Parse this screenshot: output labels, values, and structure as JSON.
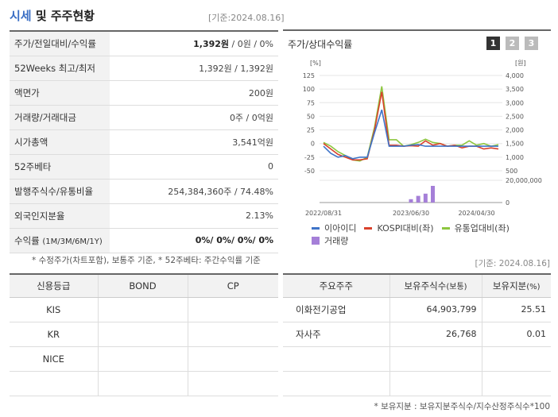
{
  "header": {
    "title_main": "시세",
    "title_rest": " 및 주주현황",
    "basis": "[기준:2024.08.16]"
  },
  "quote": {
    "rows": [
      {
        "label": "주가/전일대비/수익률",
        "value_bold": "1,392원",
        "value": " / 0원 / 0%"
      },
      {
        "label": "52Weeks 최고/최저",
        "value": "1,392원 / 1,392원"
      },
      {
        "label": "액면가",
        "value": "200원"
      },
      {
        "label": "거래량/거래대금",
        "value": "0주 / 0억원"
      },
      {
        "label": "시가총액",
        "value": "3,541억원"
      },
      {
        "label": "52주베타",
        "value": "0"
      },
      {
        "label": "발행주식수/유통비율",
        "value": "254,384,360주 / 74.48%"
      },
      {
        "label": "외국인지분율",
        "value": "2.13%"
      },
      {
        "label": "수익률",
        "label_small": "(1M/3M/6M/1Y)",
        "value_bold": "0%/ 0%/ 0%/ 0%"
      }
    ],
    "note": "* 수정주가(차트포함), 보통주 기준, * 52주베타: 주간수익률 기준"
  },
  "chart": {
    "title": "주가/상대수익률",
    "pages": [
      "1",
      "2",
      "3"
    ],
    "legend": [
      {
        "name": "이아이디",
        "color": "#3f74c8"
      },
      {
        "name": "KOSPI대비(좌)",
        "color": "#d9412c"
      },
      {
        "name": "유통업대비(좌)",
        "color": "#8dc63f"
      },
      {
        "name": "거래량",
        "color": "#a57fd8"
      }
    ]
  },
  "chart_data": {
    "type": "line",
    "left_axis": {
      "unit": "[%]",
      "ticks": [
        "125",
        "100",
        "75",
        "50",
        "25",
        "0",
        "-25",
        "-50"
      ],
      "ylim": [
        -50,
        125
      ]
    },
    "right_axis": {
      "unit": "[원]",
      "ticks": [
        "4,000",
        "3,500",
        "3,000",
        "2,500",
        "2,000",
        "1,500",
        "1,000",
        "500"
      ],
      "ylim": [
        500,
        4000
      ]
    },
    "volume_axis": {
      "ticks": [
        "20,000,000",
        "0"
      ]
    },
    "x_labels": [
      "2022/08/31",
      "2023/06/30",
      "2024/04/30"
    ],
    "series": [
      {
        "name": "이아이디",
        "values": [
          -5,
          -18,
          -25,
          -22,
          -28,
          -25,
          -25,
          20,
          62,
          -5,
          -5,
          -5,
          -3,
          -2,
          -5,
          -5,
          -5,
          -5,
          -5,
          -5,
          -5,
          -5,
          -5,
          -5,
          -5
        ]
      },
      {
        "name": "KOSPI대비(좌)",
        "values": [
          0,
          -10,
          -20,
          -25,
          -30,
          -30,
          -28,
          25,
          95,
          -3,
          -3,
          -5,
          -4,
          -5,
          5,
          -3,
          0,
          -5,
          -3,
          -8,
          -5,
          -5,
          -10,
          -8,
          -10
        ]
      },
      {
        "name": "유통업대비(좌)",
        "values": [
          2,
          -5,
          -15,
          -22,
          -30,
          -32,
          -25,
          30,
          105,
          7,
          7,
          -5,
          -2,
          2,
          8,
          2,
          0,
          -5,
          -3,
          -3,
          5,
          -3,
          0,
          -5,
          -2
        ]
      }
    ],
    "volume": [
      0,
      0,
      0,
      0,
      0,
      0,
      0,
      0,
      0,
      0,
      0,
      0,
      3,
      6,
      8,
      15,
      0,
      0,
      0,
      0,
      0,
      0,
      0,
      0,
      0
    ]
  },
  "basis_bottom": "[기준: 2024.08.16]",
  "credit": {
    "headers": [
      "신용등급",
      "BOND",
      "CP"
    ],
    "rows": [
      [
        "KIS",
        "",
        ""
      ],
      [
        "KR",
        "",
        ""
      ],
      [
        "NICE",
        "",
        ""
      ],
      [
        "",
        "",
        ""
      ]
    ]
  },
  "holders": {
    "headers": [
      "주요주주",
      "보유주식수",
      "(보통)",
      "보유지분",
      "(%)"
    ],
    "rows": [
      [
        "이화전기공업",
        "64,903,799",
        "25.51"
      ],
      [
        "자사주",
        "26,768",
        "0.01"
      ],
      [
        "",
        "",
        ""
      ],
      [
        "",
        "",
        ""
      ]
    ],
    "note": "* 보유지분 : 보유지분주식수/지수산정주식수*100"
  }
}
